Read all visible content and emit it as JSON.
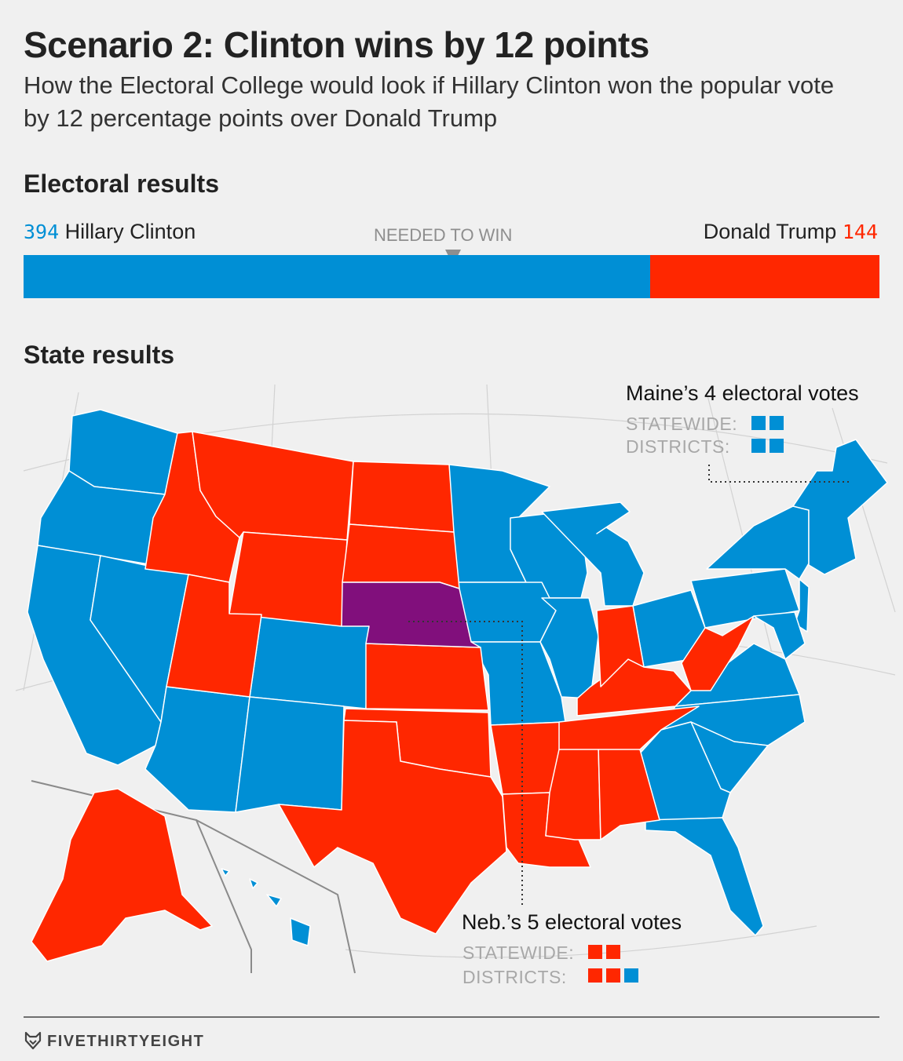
{
  "title": "Scenario 2: Clinton wins by 12 points",
  "subtitle": "How the Electoral College would look if Hillary Clinton won the popular vote by 12 percentage points over Donald Trump",
  "colors": {
    "clinton": "#008fd5",
    "trump": "#ff2700",
    "split": "#810f7c",
    "background": "#f0f0f0"
  },
  "electoral": {
    "heading": "Electoral results",
    "needed_label": "NEEDED TO WIN",
    "needed_value": 270,
    "total": 538,
    "clinton": {
      "name": "Hillary Clinton",
      "votes": "394"
    },
    "trump": {
      "name": "Donald Trump",
      "votes": "144"
    }
  },
  "states": {
    "heading": "State results",
    "maine": {
      "title": "Maine’s 4 electoral votes",
      "statewide_label": "STATEWIDE:",
      "districts_label": "DISTRICTS:",
      "statewide": [
        "clinton",
        "clinton"
      ],
      "districts": [
        "clinton",
        "clinton"
      ]
    },
    "nebraska": {
      "title": "Neb.’s 5 electoral votes",
      "statewide_label": "STATEWIDE:",
      "districts_label": "DISTRICTS:",
      "statewide": [
        "trump",
        "trump"
      ],
      "districts": [
        "trump",
        "trump",
        "clinton"
      ]
    }
  },
  "footer": {
    "brand": "FIVETHIRTYEIGHT"
  }
}
